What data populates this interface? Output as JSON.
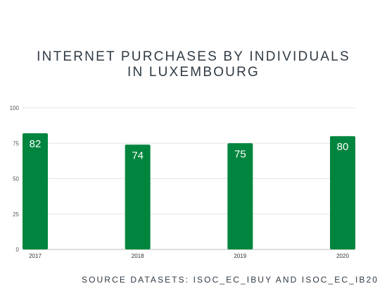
{
  "chart_data": {
    "type": "bar",
    "title_lines": [
      "INTERNET PURCHASES BY INDIVIDUALS",
      "IN LUXEMBOURG"
    ],
    "categories": [
      "2017",
      "2018",
      "2019",
      "2020"
    ],
    "values": [
      82,
      74,
      75,
      80
    ],
    "ylim": [
      0,
      100
    ],
    "yticks": [
      "0",
      "25",
      "50",
      "75",
      "100"
    ],
    "grid": true,
    "bar_color": "#00853e",
    "xlabel": "",
    "ylabel": ""
  },
  "source_text": "SOURCE DATASETS: ISOC_EC_IBUY AND ISOC_EC_IB20"
}
